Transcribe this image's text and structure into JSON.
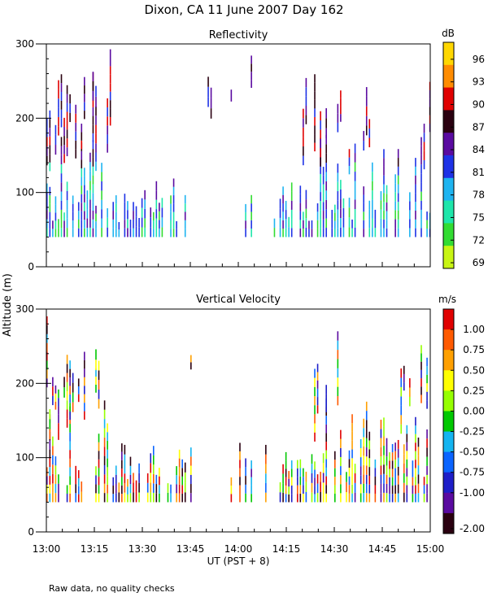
{
  "title": "Dixon, CA 11 June 2007  Day 162",
  "y_axis_label": "Altitude (m)",
  "x_axis_label": "UT  (PST + 8)",
  "footnote": "Raw data, no quality checks",
  "chart_data": [
    {
      "type": "heatmap",
      "title": "Reflectivity",
      "colorbar_label": "dB",
      "colorbar_ticks": [
        "96",
        "93",
        "90",
        "87",
        "84",
        "81",
        "78",
        "75",
        "72",
        "69"
      ],
      "colorbar_colors": [
        "#ffd700",
        "#ff8c00",
        "#e00000",
        "#2a0010",
        "#5a0aa0",
        "#1e32e6",
        "#1eb4f0",
        "#1ee6aa",
        "#32dc32",
        "#c8f514"
      ],
      "x_tick_labels": [
        "13:00",
        "13:15",
        "13:30",
        "13:45",
        "14:00",
        "14:15",
        "14:30",
        "14:45",
        "15:00"
      ],
      "y_tick_labels": [
        "0",
        "100",
        "200",
        "300"
      ],
      "xlim_minutes": [
        0,
        120
      ],
      "ylim": [
        0,
        300
      ]
    },
    {
      "type": "heatmap",
      "title": "Vertical Velocity",
      "colorbar_label": "m/s",
      "colorbar_ticks": [
        "1.00",
        "0.75",
        "0.50",
        "0.25",
        "0.00",
        "-0.25",
        "-0.50",
        "-0.75",
        "-1.00",
        "-2.00"
      ],
      "colorbar_colors": [
        "#e00000",
        "#ff5a00",
        "#ffa000",
        "#ffff00",
        "#96ff00",
        "#00c800",
        "#14b4f0",
        "#0a64ff",
        "#1e1ec8",
        "#5a0aa0",
        "#2a0010"
      ],
      "x_tick_labels": [
        "13:00",
        "13:15",
        "13:30",
        "13:45",
        "14:00",
        "14:15",
        "14:30",
        "14:45",
        "15:00"
      ],
      "y_tick_labels": [
        "0",
        "100",
        "200",
        "300"
      ],
      "xlim_minutes": [
        0,
        120
      ],
      "ylim": [
        0,
        300
      ]
    }
  ]
}
